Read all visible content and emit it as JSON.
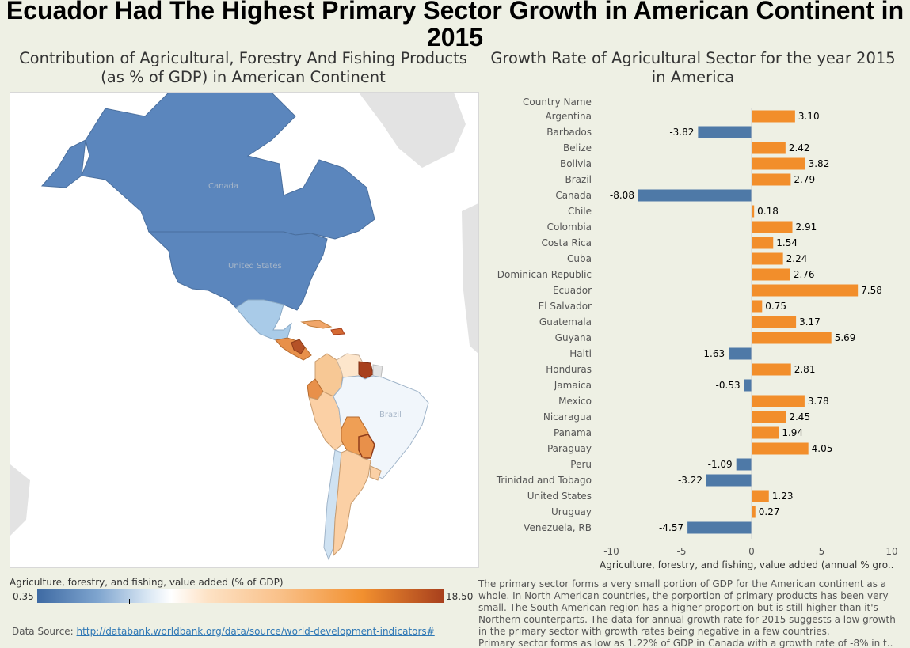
{
  "title": "Ecuador Had The Highest Primary Sector Growth in American Continent in 2015",
  "map": {
    "title": "Contribution of Agricultural, Forestry And Fishing Products (as % of GDP) in American Continent",
    "labels": {
      "canada": "Canada",
      "united_states": "United States",
      "brazil": "Brazil"
    },
    "legend": {
      "title": "Agriculture, forestry, and fishing, value added (% of GDP)",
      "min": "0.35",
      "max": "18.50",
      "colors": {
        "low": "#3e6aa3",
        "mid": "#ffffff",
        "high": "#a8401d"
      }
    }
  },
  "chart_data": {
    "type": "bar",
    "orientation": "horizontal",
    "title": "Growth Rate of Agricultural Sector for the year 2015 in America",
    "category_header": "Country Name",
    "xlabel": "Agriculture, forestry, and fishing, value added (annual % gro..",
    "xlim": [
      -10,
      10
    ],
    "xticks": [
      "-10",
      "-5",
      "0",
      "5",
      "10"
    ],
    "colors": {
      "positive": "#f28e2b",
      "negative": "#4e79a7"
    },
    "categories": [
      "Argentina",
      "Barbados",
      "Belize",
      "Bolivia",
      "Brazil",
      "Canada",
      "Chile",
      "Colombia",
      "Costa Rica",
      "Cuba",
      "Dominican Republic",
      "Ecuador",
      "El Salvador",
      "Guatemala",
      "Guyana",
      "Haiti",
      "Honduras",
      "Jamaica",
      "Mexico",
      "Nicaragua",
      "Panama",
      "Paraguay",
      "Peru",
      "Trinidad and Tobago",
      "United States",
      "Uruguay",
      "Venezuela, RB"
    ],
    "values": [
      3.1,
      -3.82,
      2.42,
      3.82,
      2.79,
      -8.08,
      0.18,
      2.91,
      1.54,
      2.24,
      2.76,
      7.58,
      0.75,
      3.17,
      5.69,
      -1.63,
      2.81,
      -0.53,
      3.78,
      2.45,
      1.94,
      4.05,
      -1.09,
      -3.22,
      1.23,
      0.27,
      -4.57
    ],
    "value_labels": [
      "3.10",
      "-3.82",
      "2.42",
      "3.82",
      "2.79",
      "-8.08",
      "0.18",
      "2.91",
      "1.54",
      "2.24",
      "2.76",
      "7.58",
      "0.75",
      "3.17",
      "5.69",
      "-1.63",
      "2.81",
      "-0.53",
      "3.78",
      "2.45",
      "1.94",
      "4.05",
      "-1.09",
      "-3.22",
      "1.23",
      "0.27",
      "-4.57"
    ]
  },
  "footer": {
    "source_prefix": "Data Source: ",
    "source_link": "http://databank.worldbank.org/data/source/world-development-indicators#",
    "commentary_1": "The primary sector forms a very small portion of GDP for the American continent as a whole. In North American countries, the porportion of primary products has been very small. The South American region has a higher proportion but is still higher than it's Northern counterparts. The data for annual growth rate for 2015 suggests a low growth in the primary sector with growth rates being negative in a few countries.",
    "commentary_2": "Primary sector forms as low as 1.22% of GDP in Canada with a growth rate of -8% in t.."
  }
}
